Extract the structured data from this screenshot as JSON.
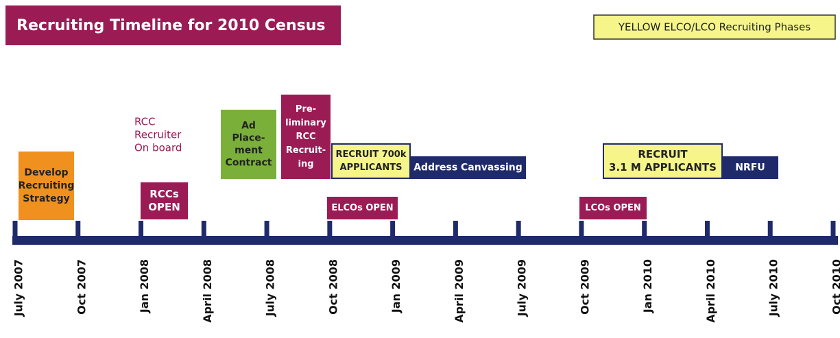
{
  "header": {
    "title": "Recruiting Timeline for 2010 Census"
  },
  "legend": {
    "label": "YELLOW  ELCO/LCO Recruiting Phases"
  },
  "boxes": [
    {
      "lines": [
        "Develop",
        "Recruiting",
        "Strategy"
      ]
    },
    {
      "lines": [
        "RCC",
        "Recruiter",
        "On board"
      ]
    },
    {
      "lines": [
        "RCCs",
        "OPEN"
      ]
    },
    {
      "lines": [
        "Ad",
        "Place-",
        "ment",
        "Contract"
      ]
    },
    {
      "lines": [
        "Pre-",
        "liminary",
        "RCC",
        "Recruit-",
        "ing"
      ]
    },
    {
      "lines": [
        "RECRUIT 700k",
        "APPLICANTS"
      ]
    },
    {
      "lines": [
        "Address Canvassing"
      ]
    },
    {
      "lines": [
        "ELCOs OPEN"
      ]
    },
    {
      "lines": [
        "LCOs OPEN"
      ]
    },
    {
      "lines": [
        "RECRUIT",
        "3.1 M APPLICANTS"
      ]
    },
    {
      "lines": [
        "NRFU"
      ]
    }
  ],
  "axis_labels": [
    "July 2007",
    "Oct 2007",
    "Jan 2008",
    "April 2008",
    "July 2008",
    "Oct 2008",
    "Jan 2009",
    "April 2009",
    "July 2009",
    "Oct 2009",
    "Jan 2010",
    "April 2010",
    "July 2010",
    "Oct 2010"
  ]
}
